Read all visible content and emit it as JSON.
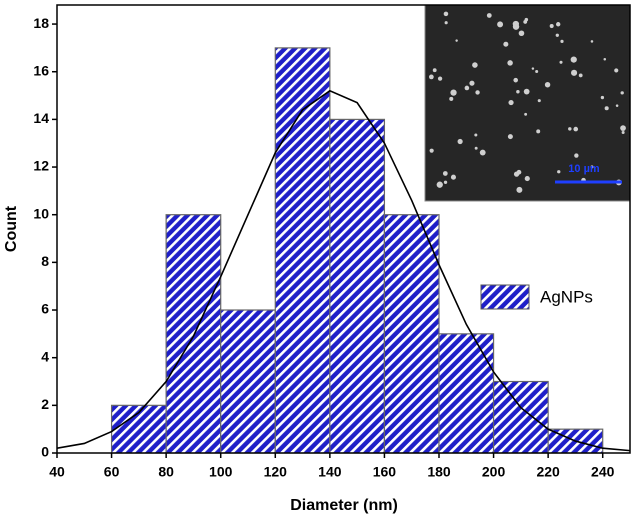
{
  "chart_data": {
    "type": "histogram",
    "bins": [
      60,
      80,
      100,
      120,
      140,
      160,
      180,
      200,
      220,
      240
    ],
    "values": [
      2,
      10,
      6,
      17,
      14,
      10,
      5,
      3,
      1
    ],
    "color": "#1f1fc8",
    "series_name": "AgNPs",
    "fit": {
      "color": "#000000",
      "x": [
        40,
        50,
        60,
        70,
        80,
        90,
        100,
        110,
        120,
        130,
        140,
        150,
        160,
        170,
        180,
        190,
        200,
        210,
        220,
        230,
        240,
        250
      ],
      "values": [
        0.2,
        0.4,
        0.9,
        1.7,
        3.0,
        4.9,
        7.4,
        10.0,
        12.6,
        14.4,
        15.2,
        14.7,
        13.0,
        10.6,
        7.9,
        5.4,
        3.4,
        1.9,
        1.0,
        0.5,
        0.2,
        0.1
      ]
    },
    "xlabel": "Diameter (nm)",
    "ylabel": "Count",
    "xlim": [
      40,
      250
    ],
    "ylim": [
      0,
      18.8
    ],
    "xticks": [
      40,
      60,
      80,
      100,
      120,
      140,
      160,
      180,
      200,
      220,
      240
    ],
    "yticks": [
      0,
      2,
      4,
      6,
      8,
      10,
      12,
      14,
      16,
      18
    ],
    "legend_position": "center right",
    "inset_scale_label": "10 µm"
  }
}
